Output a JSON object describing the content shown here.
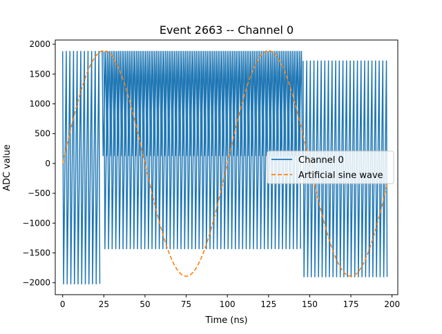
{
  "chart_data": {
    "type": "line",
    "title": "Event 2663 -- Channel 0",
    "xlabel": "Time (ns)",
    "ylabel": "ADC value",
    "xlim": [
      -4.5,
      203.5
    ],
    "ylim": [
      -2200,
      2070
    ],
    "x_ticks": [
      0,
      25,
      50,
      75,
      100,
      125,
      150,
      175,
      200
    ],
    "y_ticks": [
      -2000,
      -1500,
      -1000,
      -500,
      0,
      500,
      1000,
      1500,
      2000
    ],
    "grid": false,
    "legend": {
      "position": "center-right"
    },
    "series": [
      {
        "name": "Channel 0",
        "style": "solid",
        "color": "#1f77b4",
        "segments": [
          {
            "x_start": 0,
            "x_end": 24,
            "period": 2.2,
            "y_high": 1880,
            "y_low": -2020
          },
          {
            "x_start": 24,
            "x_end": 146,
            "period": 2.2,
            "y_high": 1880,
            "y_low": 130
          },
          {
            "x_start": 24,
            "x_end": 146,
            "period": 2.2,
            "y_high": 1880,
            "y_low": -1430,
            "phase": 1.1
          },
          {
            "x_start": 146,
            "x_end": 197,
            "period": 2.2,
            "y_high": 1720,
            "y_low": -1900
          }
        ]
      },
      {
        "name": "Artificial sine wave",
        "style": "dashed",
        "color": "#ff7f0e",
        "amplitude": 1890,
        "period": 100,
        "x_range": [
          0,
          197
        ]
      }
    ]
  }
}
